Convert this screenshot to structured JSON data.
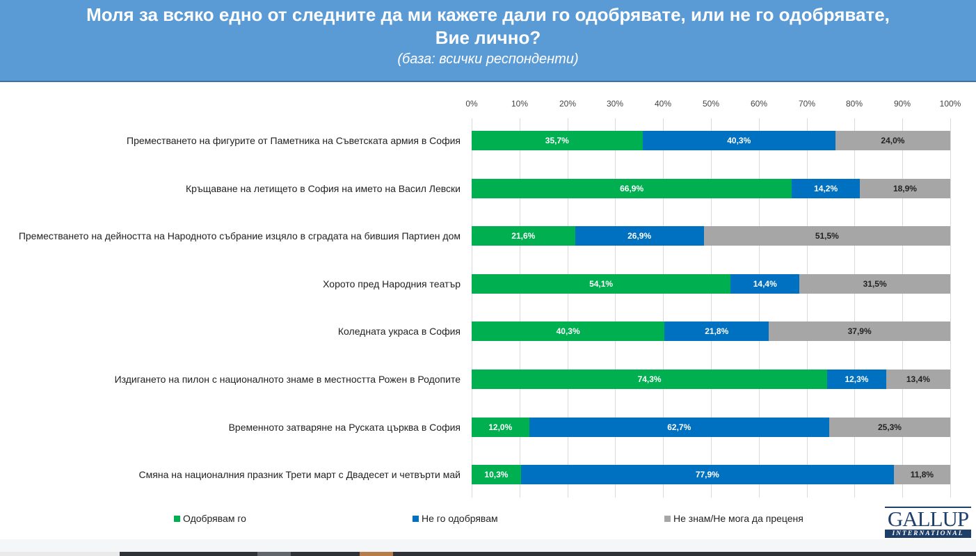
{
  "header": {
    "title": "Моля за всяко едно от следните да ми кажете дали го одобрявате, или не го одобрявате, Вие лично?",
    "subtitle": "(база: всички респонденти)"
  },
  "colors": {
    "approve": "#00b050",
    "disapprove": "#0070c0",
    "dont_know": "#a6a6a6",
    "header_bg": "#5b9bd5"
  },
  "chart_data": {
    "type": "bar",
    "orientation": "horizontal",
    "stacked": "percent",
    "title": "Моля за всяко едно от следните да ми кажете дали го одобрявате, или не го одобрявате, Вие лично?",
    "subtitle": "(база: всички респонденти)",
    "xlabel": "",
    "ylabel": "",
    "xlim": [
      0,
      100
    ],
    "x_ticks": [
      "0%",
      "10%",
      "20%",
      "30%",
      "40%",
      "50%",
      "60%",
      "70%",
      "80%",
      "90%",
      "100%"
    ],
    "grid": true,
    "legend_position": "bottom",
    "categories": [
      "Преместването на фигурите от Паметника на Съветската армия в София",
      "Кръщаване на летището в София на името на Васил Левски",
      "Преместването на дейността на Народното събрание изцяло в сградата на бившия Партиен дом",
      "Хорото пред Народния театър",
      "Коледната украса в София",
      "Издигането на пилон с националното знаме в местността Рожен в Родопите",
      "Временното затваряне на Руската църква в София",
      "Смяна на националния празник Трети март с Двадесет и четвърти май"
    ],
    "series": [
      {
        "name": "Одобрявам го",
        "values": [
          35.7,
          66.9,
          21.6,
          54.1,
          40.3,
          74.3,
          12.0,
          10.3
        ],
        "labels": [
          "35,7%",
          "66,9%",
          "21,6%",
          "54,1%",
          "40,3%",
          "74,3%",
          "12,0%",
          "10,3%"
        ]
      },
      {
        "name": "Не го одобрявам",
        "values": [
          40.3,
          14.2,
          26.9,
          14.4,
          21.8,
          12.3,
          62.7,
          77.9
        ],
        "labels": [
          "40,3%",
          "14,2%",
          "26,9%",
          "14,4%",
          "21,8%",
          "12,3%",
          "62,7%",
          "77,9%"
        ]
      },
      {
        "name": "Не знам/Не мога да преценя",
        "values": [
          24.0,
          18.9,
          51.5,
          31.5,
          37.9,
          13.4,
          25.3,
          11.8
        ],
        "labels": [
          "24,0%",
          "18,9%",
          "51,5%",
          "31,5%",
          "37,9%",
          "13,4%",
          "25,3%",
          "11,8%"
        ]
      }
    ]
  },
  "logo": {
    "name": "GALLUP",
    "sub": "INTERNATIONAL"
  }
}
